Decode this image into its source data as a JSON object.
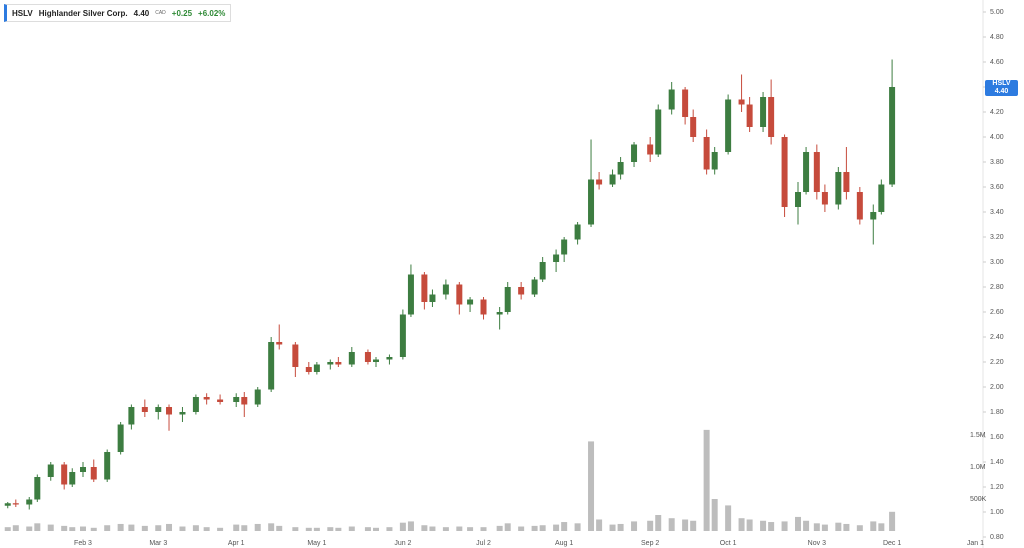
{
  "header": {
    "symbol": "HSLV",
    "name": "Highlander Silver Corp.",
    "price": "4.40",
    "currency": "CAD",
    "change": "+0.25",
    "change_pct": "+6.02%"
  },
  "price_tag": {
    "symbol": "HSLV",
    "price": "4.40"
  },
  "chart_data": {
    "type": "candlestick",
    "x": [
      "Jan 6",
      "Jan 9",
      "Jan 14",
      "Jan 17",
      "Jan 22",
      "Jan 27",
      "Jan 30",
      "Feb 3",
      "Feb 7",
      "Feb 12",
      "Feb 17",
      "Feb 21",
      "Feb 26",
      "Mar 3",
      "Mar 7",
      "Mar 12",
      "Mar 17",
      "Mar 21",
      "Mar 26",
      "Apr 1",
      "Apr 4",
      "Apr 9",
      "Apr 14",
      "Apr 17",
      "Apr 23",
      "Apr 28",
      "May 1",
      "May 6",
      "May 9",
      "May 14",
      "May 20",
      "May 23",
      "May 28",
      "Jun 2",
      "Jun 5",
      "Jun 10",
      "Jun 13",
      "Jun 18",
      "Jun 23",
      "Jun 27",
      "Jul 2",
      "Jul 8",
      "Jul 11",
      "Jul 16",
      "Jul 21",
      "Jul 24",
      "Jul 29",
      "Aug 1",
      "Aug 6",
      "Aug 11",
      "Aug 14",
      "Aug 19",
      "Aug 22",
      "Aug 27",
      "Sep 2",
      "Sep 5",
      "Sep 10",
      "Sep 15",
      "Sep 18",
      "Sep 23",
      "Sep 26",
      "Oct 1",
      "Oct 6",
      "Oct 9",
      "Oct 14",
      "Oct 17",
      "Oct 22",
      "Oct 27",
      "Oct 30",
      "Nov 3",
      "Nov 6",
      "Nov 11",
      "Nov 14",
      "Nov 19",
      "Nov 24",
      "Nov 27",
      "Dec 1"
    ],
    "open": [
      1.05,
      1.07,
      1.06,
      1.1,
      1.28,
      1.38,
      1.22,
      1.32,
      1.36,
      1.26,
      1.48,
      1.7,
      1.84,
      1.8,
      1.84,
      1.78,
      1.8,
      1.92,
      1.9,
      1.88,
      1.92,
      1.86,
      1.98,
      2.36,
      2.34,
      2.16,
      2.12,
      2.18,
      2.2,
      2.18,
      2.28,
      2.2,
      2.22,
      2.24,
      2.58,
      2.9,
      2.68,
      2.74,
      2.82,
      2.66,
      2.7,
      2.58,
      2.6,
      2.8,
      2.74,
      2.86,
      3.0,
      3.06,
      3.18,
      3.3,
      3.66,
      3.62,
      3.7,
      3.8,
      3.94,
      3.86,
      4.22,
      4.38,
      4.16,
      4.0,
      3.74,
      3.88,
      4.3,
      4.26,
      4.08,
      4.32,
      4.0,
      3.44,
      3.56,
      3.88,
      3.56,
      3.46,
      3.72,
      3.56,
      3.34,
      3.4,
      3.62
    ],
    "high": [
      1.08,
      1.1,
      1.12,
      1.3,
      1.4,
      1.4,
      1.35,
      1.4,
      1.42,
      1.5,
      1.72,
      1.86,
      1.9,
      1.86,
      1.86,
      1.84,
      1.94,
      1.95,
      1.94,
      1.95,
      1.96,
      2.0,
      2.4,
      2.5,
      2.36,
      2.2,
      2.2,
      2.22,
      2.24,
      2.32,
      2.3,
      2.24,
      2.26,
      2.62,
      2.98,
      2.92,
      2.78,
      2.86,
      2.84,
      2.72,
      2.72,
      2.64,
      2.84,
      2.84,
      2.88,
      3.04,
      3.1,
      3.2,
      3.32,
      3.98,
      3.72,
      3.74,
      3.84,
      3.96,
      4.0,
      4.26,
      4.44,
      4.4,
      4.22,
      4.06,
      3.92,
      4.34,
      4.5,
      4.32,
      4.36,
      4.46,
      4.02,
      3.64,
      3.92,
      3.94,
      3.62,
      3.76,
      3.92,
      3.6,
      3.46,
      3.66,
      4.62
    ],
    "low": [
      1.03,
      1.04,
      1.02,
      1.08,
      1.25,
      1.18,
      1.2,
      1.28,
      1.24,
      1.24,
      1.46,
      1.66,
      1.76,
      1.74,
      1.65,
      1.72,
      1.78,
      1.86,
      1.86,
      1.84,
      1.76,
      1.84,
      1.96,
      2.3,
      2.08,
      2.1,
      2.1,
      2.14,
      2.16,
      2.16,
      2.18,
      2.16,
      2.18,
      2.22,
      2.56,
      2.62,
      2.64,
      2.7,
      2.58,
      2.6,
      2.54,
      2.46,
      2.58,
      2.7,
      2.72,
      2.84,
      2.92,
      3.0,
      3.14,
      3.28,
      3.58,
      3.6,
      3.66,
      3.76,
      3.8,
      3.84,
      4.18,
      4.1,
      3.96,
      3.7,
      3.7,
      3.86,
      4.2,
      4.04,
      4.04,
      3.94,
      3.36,
      3.3,
      3.54,
      3.5,
      3.4,
      3.42,
      3.5,
      3.3,
      3.14,
      3.38,
      3.6
    ],
    "close": [
      1.07,
      1.06,
      1.1,
      1.28,
      1.38,
      1.22,
      1.32,
      1.36,
      1.26,
      1.48,
      1.7,
      1.84,
      1.8,
      1.84,
      1.78,
      1.8,
      1.92,
      1.9,
      1.88,
      1.92,
      1.86,
      1.98,
      2.36,
      2.34,
      2.16,
      2.12,
      2.18,
      2.2,
      2.18,
      2.28,
      2.2,
      2.22,
      2.24,
      2.58,
      2.9,
      2.68,
      2.74,
      2.82,
      2.66,
      2.7,
      2.58,
      2.6,
      2.8,
      2.74,
      2.86,
      3.0,
      3.06,
      3.18,
      3.3,
      3.66,
      3.62,
      3.7,
      3.8,
      3.94,
      3.86,
      4.22,
      4.38,
      4.16,
      4.0,
      3.74,
      3.88,
      4.3,
      4.26,
      4.08,
      4.32,
      4.0,
      3.44,
      3.56,
      3.88,
      3.56,
      3.46,
      3.72,
      3.56,
      3.34,
      3.4,
      3.62,
      4.4
    ],
    "volume": [
      60000,
      90000,
      70000,
      120000,
      100000,
      80000,
      60000,
      70000,
      50000,
      90000,
      110000,
      100000,
      80000,
      90000,
      110000,
      70000,
      90000,
      60000,
      50000,
      100000,
      90000,
      110000,
      120000,
      80000,
      60000,
      50000,
      50000,
      60000,
      50000,
      70000,
      60000,
      50000,
      60000,
      130000,
      150000,
      90000,
      70000,
      60000,
      70000,
      60000,
      60000,
      80000,
      120000,
      70000,
      80000,
      90000,
      100000,
      140000,
      120000,
      1400000,
      180000,
      100000,
      110000,
      150000,
      160000,
      250000,
      200000,
      180000,
      160000,
      1580000,
      500000,
      400000,
      200000,
      180000,
      160000,
      140000,
      150000,
      220000,
      160000,
      120000,
      100000,
      130000,
      110000,
      90000,
      150000,
      120000,
      300000
    ],
    "up_color": "#3d7d41",
    "down_color": "#c64b3c",
    "volume_color": "#bdbdbd",
    "ylim": [
      0.8,
      5.0
    ],
    "yticks": [
      {
        "value": 0.8,
        "label": "0.80"
      },
      {
        "value": 1.0,
        "label": "1.00"
      },
      {
        "value": 1.2,
        "label": "1.20"
      },
      {
        "value": 1.4,
        "label": "1.40"
      },
      {
        "value": 1.6,
        "label": "1.60"
      },
      {
        "value": 1.8,
        "label": "1.80"
      },
      {
        "value": 2.0,
        "label": "2.00"
      },
      {
        "value": 2.2,
        "label": "2.20"
      },
      {
        "value": 2.4,
        "label": "2.40"
      },
      {
        "value": 2.6,
        "label": "2.60"
      },
      {
        "value": 2.8,
        "label": "2.80"
      },
      {
        "value": 3.0,
        "label": "3.00"
      },
      {
        "value": 3.2,
        "label": "3.20"
      },
      {
        "value": 3.4,
        "label": "3.40"
      },
      {
        "value": 3.6,
        "label": "3.60"
      },
      {
        "value": 3.8,
        "label": "3.80"
      },
      {
        "value": 4.0,
        "label": "4.00"
      },
      {
        "value": 4.2,
        "label": "4.20"
      },
      {
        "value": 4.4,
        "label": "4.40"
      },
      {
        "value": 4.6,
        "label": "4.60"
      },
      {
        "value": 4.8,
        "label": "4.80"
      },
      {
        "value": 5.0,
        "label": "5.00"
      }
    ],
    "volume_ticks": [
      {
        "value": 500000,
        "label": "500K"
      },
      {
        "value": 1000000,
        "label": "1.0M"
      },
      {
        "value": 1500000,
        "label": "1.5M"
      }
    ],
    "xticks": [
      "Feb 3",
      "Mar 3",
      "Apr 1",
      "May 1",
      "Jun 2",
      "Jul 2",
      "Aug 1",
      "Sep 2",
      "Oct 1",
      "Nov 3",
      "Dec 1",
      "Jan 1"
    ]
  }
}
